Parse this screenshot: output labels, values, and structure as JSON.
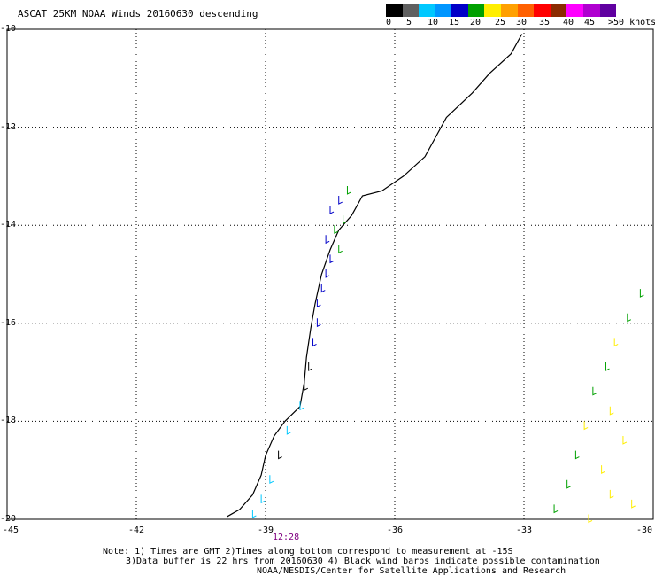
{
  "title": "ASCAT 25KM NOAA Winds 20160630 descending",
  "scale": {
    "colors": [
      "#000000",
      "#606060",
      "#00c8ff",
      "#0096ff",
      "#0000c8",
      "#00a000",
      "#ffee00",
      "#ffa000",
      "#ff6000",
      "#ff0000",
      "#8b2a00",
      "#ff00ff",
      "#b000d0",
      "#6000a0"
    ],
    "labels": [
      "0",
      "5",
      "10",
      "15",
      "20",
      "25",
      "30",
      "35",
      "40",
      "45",
      ">50 knots"
    ]
  },
  "lat_labels": [
    "-10",
    "-12",
    "-14",
    "-16",
    "-18",
    "-20"
  ],
  "lon_labels": [
    "-45",
    "-42",
    "-39",
    "-36",
    "-33",
    "-30"
  ],
  "time_label": "12:28",
  "notes": [
    "Note: 1) Times are GMT 2)Times along bottom correspond to measurement at -15S",
    "3)Data buffer is 22 hrs from 20160630 4) Black wind barbs indicate possible contamination",
    "NOAA/NESDIS/Center for Satellite Applications and Research"
  ],
  "map": {
    "lon_range": [
      -45,
      -30
    ],
    "lat_range": [
      -20,
      -10
    ],
    "grid": true,
    "coastline": [
      [
        -33.05,
        -10.1
      ],
      [
        -33.3,
        -10.5
      ],
      [
        -33.8,
        -10.9
      ],
      [
        -34.2,
        -11.3
      ],
      [
        -34.8,
        -11.8
      ],
      [
        -35.3,
        -12.6
      ],
      [
        -35.8,
        -13.0
      ],
      [
        -36.3,
        -13.3
      ],
      [
        -36.75,
        -13.4
      ],
      [
        -37.0,
        -13.8
      ],
      [
        -37.3,
        -14.1
      ],
      [
        -37.5,
        -14.5
      ],
      [
        -37.7,
        -15.0
      ],
      [
        -37.85,
        -15.6
      ],
      [
        -37.95,
        -16.1
      ],
      [
        -38.05,
        -16.7
      ],
      [
        -38.1,
        -17.2
      ],
      [
        -38.2,
        -17.7
      ],
      [
        -38.55,
        -18.0
      ],
      [
        -38.8,
        -18.3
      ],
      [
        -39.0,
        -18.7
      ],
      [
        -39.1,
        -19.1
      ],
      [
        -39.3,
        -19.5
      ],
      [
        -39.6,
        -19.8
      ],
      [
        -39.9,
        -19.95
      ]
    ],
    "wind_barbs": [
      {
        "lat": -13.2,
        "lon": -37.1,
        "knots": 18
      },
      {
        "lat": -13.4,
        "lon": -37.3,
        "knots": 14
      },
      {
        "lat": -13.6,
        "lon": -37.5,
        "knots": 13
      },
      {
        "lat": -13.8,
        "lon": -37.2,
        "knots": 17
      },
      {
        "lat": -14.0,
        "lon": -37.4,
        "knots": 18
      },
      {
        "lat": -14.2,
        "lon": -37.6,
        "knots": 13
      },
      {
        "lat": -14.4,
        "lon": -37.3,
        "knots": 19
      },
      {
        "lat": -14.6,
        "lon": -37.5,
        "knots": 14
      },
      {
        "lat": -14.9,
        "lon": -37.6,
        "knots": 13
      },
      {
        "lat": -15.2,
        "lon": -37.7,
        "knots": 14
      },
      {
        "lat": -15.5,
        "lon": -37.8,
        "knots": 13
      },
      {
        "lat": -15.9,
        "lon": -37.8,
        "knots": 12
      },
      {
        "lat": -16.3,
        "lon": -37.9,
        "knots": 11
      },
      {
        "lat": -16.8,
        "lon": -38.0,
        "knots": 3
      },
      {
        "lat": -17.2,
        "lon": -38.1,
        "knots": 4
      },
      {
        "lat": -17.6,
        "lon": -38.2,
        "knots": 8
      },
      {
        "lat": -18.1,
        "lon": -38.5,
        "knots": 9
      },
      {
        "lat": -18.6,
        "lon": -38.7,
        "knots": 3
      },
      {
        "lat": -19.1,
        "lon": -38.9,
        "knots": 7
      },
      {
        "lat": -19.5,
        "lon": -39.1,
        "knots": 8
      },
      {
        "lat": -19.8,
        "lon": -39.3,
        "knots": 9
      },
      {
        "lat": -15.3,
        "lon": -30.3,
        "knots": 18
      },
      {
        "lat": -15.8,
        "lon": -30.6,
        "knots": 18
      },
      {
        "lat": -16.3,
        "lon": -30.9,
        "knots": 21
      },
      {
        "lat": -16.8,
        "lon": -31.1,
        "knots": 18
      },
      {
        "lat": -17.3,
        "lon": -31.4,
        "knots": 19
      },
      {
        "lat": -17.7,
        "lon": -31.0,
        "knots": 22
      },
      {
        "lat": -18.0,
        "lon": -31.6,
        "knots": 23
      },
      {
        "lat": -18.3,
        "lon": -30.7,
        "knots": 24
      },
      {
        "lat": -18.6,
        "lon": -31.8,
        "knots": 18
      },
      {
        "lat": -18.9,
        "lon": -31.2,
        "knots": 24
      },
      {
        "lat": -19.2,
        "lon": -32.0,
        "knots": 19
      },
      {
        "lat": -19.4,
        "lon": -31.0,
        "knots": 23
      },
      {
        "lat": -19.7,
        "lon": -32.3,
        "knots": 18
      },
      {
        "lat": -19.9,
        "lon": -31.5,
        "knots": 24
      },
      {
        "lat": -19.6,
        "lon": -30.5,
        "knots": 22
      }
    ]
  }
}
